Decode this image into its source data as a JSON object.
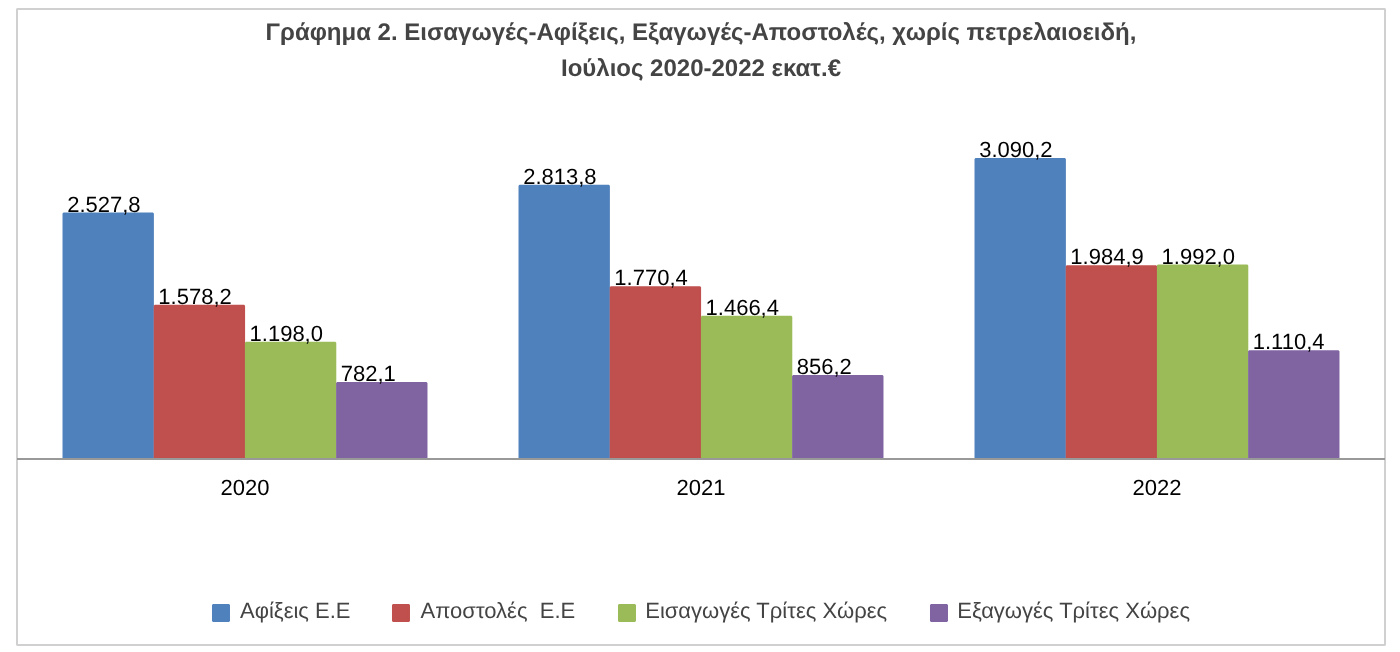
{
  "chart_data": {
    "type": "bar",
    "title": "Γράφημα 2. Εισαγωγές-Αφίξεις, Εξαγωγές-Αποστολές, χωρίς πετρελαιοειδή,\nΙούλιος 2020-2022 εκατ.€",
    "categories": [
      "2020",
      "2021",
      "2022"
    ],
    "legend": "bottom",
    "grid": false,
    "tick_labels": "x",
    "series": [
      {
        "name": "Αφίξεις Ε.Ε",
        "color": "#4f81bd",
        "values": [
          2527.8,
          2813.8,
          3090.2
        ],
        "value_labels": [
          "2.527,8",
          "2.813,8",
          "3.090,2"
        ]
      },
      {
        "name": "Αποστολές  Ε.Ε",
        "color": "#c0504d",
        "values": [
          1578.2,
          1770.4,
          1984.9
        ],
        "value_labels": [
          "1.578,2",
          "1.770,4",
          "1.984,9"
        ]
      },
      {
        "name": "Εισαγωγές Τρίτες Χώρες",
        "color": "#9bbb59",
        "values": [
          1198.0,
          1466.4,
          1992.0
        ],
        "value_labels": [
          "1.198,0",
          "1.466,4",
          "1.992,0"
        ]
      },
      {
        "name": "Εξαγωγές Τρίτες Χώρες",
        "color": "#8064a2",
        "values": [
          782.1,
          856.2,
          1110.4
        ],
        "value_labels": [
          "782,1",
          "856,2",
          "1.110,4"
        ]
      }
    ]
  }
}
